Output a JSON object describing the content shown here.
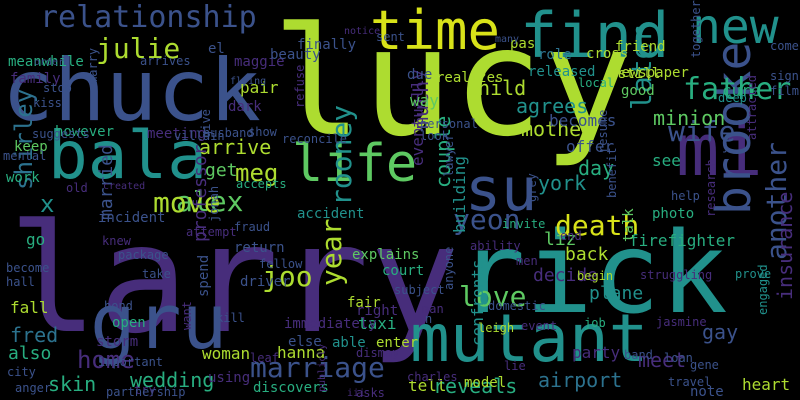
{
  "background": "#000000",
  "palette": {
    "purple": "#472d7b",
    "indigo": "#3b528b",
    "blue": "#2c728e",
    "teal": "#21918c",
    "green": "#28ae80",
    "lime": "#5ec962",
    "yellowgreen": "#addc30",
    "yellow": "#d8e219"
  },
  "words": [
    "lucy",
    "larry",
    "rick",
    "chuck",
    "mutant",
    "find",
    "gru",
    "mi",
    "bala",
    "su",
    "life",
    "brooke",
    "new",
    "time",
    "relationship",
    "father",
    "wife",
    "death",
    "julie",
    "alex",
    "later",
    "rooney",
    "yeon",
    "mother",
    "love",
    "marriage",
    "wedding",
    "move",
    "joo",
    "meg",
    "agrees",
    "arrive",
    "home",
    "year",
    "day",
    "york",
    "minion",
    "another",
    "firefighter",
    "shirley",
    "fred",
    "airport",
    "skin",
    "reveals",
    "meet",
    "gay",
    "insurance",
    "heart",
    "hanna",
    "taxi",
    "decide",
    "liz",
    "plane",
    "back",
    "couple",
    "confronts",
    "eventually",
    "building",
    "much",
    "way",
    "child",
    "becomes",
    "offer",
    "cure",
    "see",
    "however",
    "meanwhile",
    "family",
    "pair",
    "maggie",
    "beauty",
    "finally",
    "realizes",
    "friend",
    "pas",
    "role",
    "cross",
    "newspaper",
    "released",
    "kiss",
    "marry",
    "stop",
    "meeting",
    "arrives",
    "keep",
    "work",
    "incident",
    "married",
    "professor",
    "return",
    "fall",
    "also",
    "open",
    "storm",
    "woman",
    "discovers",
    "tell",
    "party",
    "x",
    "go",
    "fair",
    "able",
    "enter",
    "explains",
    "talk",
    "good",
    "still",
    "local",
    "dark",
    "el",
    "show",
    "accepts",
    "accident",
    "court",
    "lawyer",
    "ability",
    "invite",
    "men",
    "job",
    "begin",
    "struggling",
    "prove",
    "engaged",
    "deep",
    "film",
    "together",
    "grey",
    "model",
    "note",
    "travel",
    "loan",
    "band",
    "asks",
    "charles",
    "dismay",
    "try",
    "partnership",
    "important",
    "anger",
    "city",
    "become",
    "hall",
    "bond",
    "package",
    "fellow",
    "driver",
    "else",
    "spend",
    "kill",
    "leaf",
    "using",
    "want",
    "immediately",
    "right",
    "man",
    "n",
    "leigh",
    "event",
    "domestic",
    "anyone",
    "subject",
    "jonah",
    "villain",
    "attempt",
    "fraud",
    "husband",
    "reconcile",
    "look",
    "personal",
    "due",
    "sent",
    "notice",
    "many",
    "gene",
    "research",
    "photo",
    "help",
    "resume",
    "attracted",
    "suggests",
    "mental",
    "old",
    "order",
    "created",
    "give",
    "flying",
    "refuse",
    "publicly",
    "iii",
    "take",
    "knew",
    "get",
    "j",
    "jasmine",
    "benefit",
    "come",
    "end",
    "lie",
    "sign",
    "date"
  ]
}
